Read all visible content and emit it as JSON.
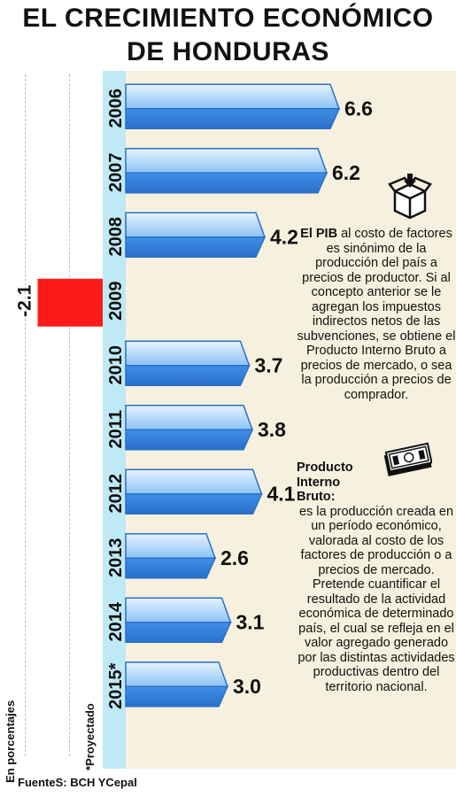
{
  "title": {
    "line1": "EL CRECIMIENTO ECONÓMICO",
    "line2": "DE HONDURAS"
  },
  "unit_label": "En porcentajes",
  "projected_label": "*Proyectado",
  "source": "FuenteS: BCH YCepal",
  "notes": {
    "pib_term": "El PIB",
    "pib_text": " al costo de factores es sinónimo de la producción del país a precios de productor. Si al concepto anterior se le agregan los impuestos indirectos netos de las subvenciones, se obtiene el Producto Interno Bruto a precios de mercado, o sea la producción a precios de comprador.",
    "pib2_term": "Producto Interno Bruto:",
    "pib2_text": "es la producción creada en un período económico, valorada al costo de los factores de producción o a precios de mercado. Pretende cuantificar el resultado de la actividad económica de determinado país, el cual se refleja en el valor agregado generado por las distintas actividades productivas dentro del territorio nacional."
  },
  "colors": {
    "positive_bar": "#4a90e2",
    "negative_bar": "#ff1a1a",
    "year_column": "#bfe9f5"
  },
  "icons": [
    "box-icon",
    "money-icon"
  ],
  "chart_data": {
    "type": "bar",
    "orientation": "horizontal",
    "title": "EL CRECIMIENTO ECONÓMICO DE HONDURAS",
    "unit": "En porcentajes",
    "categories": [
      "2006",
      "2007",
      "2008",
      "2009",
      "2010",
      "2011",
      "2012",
      "2013",
      "2014",
      "2015*"
    ],
    "values": [
      6.6,
      6.2,
      4.2,
      -2.1,
      3.7,
      3.8,
      4.1,
      2.6,
      3.1,
      3.0
    ],
    "value_labels": [
      "6.6",
      "6.2",
      "4.2",
      "-2.1",
      "3.7",
      "3.8",
      "4.1",
      "2.6",
      "3.1",
      "3.0"
    ],
    "xlim": [
      -2.1,
      6.6
    ],
    "grid": false,
    "legend": "none",
    "annotation": "*Proyectado"
  }
}
